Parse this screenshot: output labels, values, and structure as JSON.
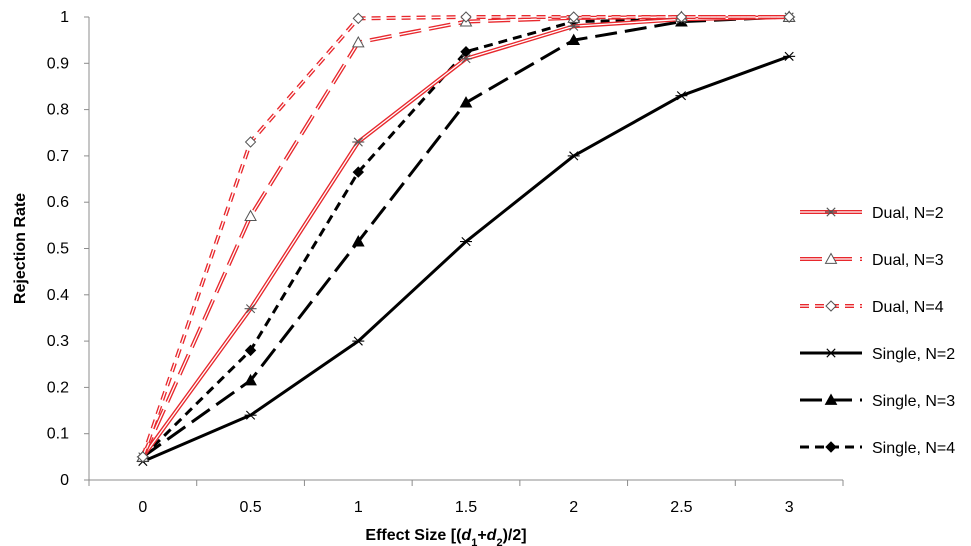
{
  "chart_data": {
    "type": "line",
    "title": "",
    "xlabel": "Effect Size [(d1+d2)/2]",
    "xlabel_parts": [
      {
        "text": "Effect Size [(",
        "style": "normal"
      },
      {
        "text": "d",
        "style": "italic"
      },
      {
        "text": "1",
        "style": "sub"
      },
      {
        "text": "+",
        "style": "normal"
      },
      {
        "text": "d",
        "style": "italic"
      },
      {
        "text": "2",
        "style": "sub"
      },
      {
        "text": ")/2]",
        "style": "normal"
      }
    ],
    "ylabel": "Rejection Rate",
    "xlim": [
      -0.25,
      3.25
    ],
    "ylim": [
      0,
      1
    ],
    "x_ticks": [
      "0",
      "0.5",
      "1",
      "1.5",
      "2",
      "2.5",
      "3"
    ],
    "y_ticks": [
      "0",
      "0.1",
      "0.2",
      "0.3",
      "0.4",
      "0.5",
      "0.6",
      "0.7",
      "0.8",
      "0.9",
      "1"
    ],
    "x": [
      0,
      0.5,
      1,
      1.5,
      2,
      2.5,
      3
    ],
    "grid": false,
    "legend_position": "right",
    "series": [
      {
        "name": "Dual, N=2",
        "values": [
          0.05,
          0.37,
          0.73,
          0.91,
          0.98,
          0.995,
          1.0
        ],
        "color": "#e8282d",
        "style": "double-solid",
        "marker": "asterisk"
      },
      {
        "name": "Dual, N=3",
        "values": [
          0.05,
          0.57,
          0.945,
          0.99,
          0.998,
          1.0,
          1.0
        ],
        "color": "#e8282d",
        "style": "double-longdash",
        "marker": "triangle-open"
      },
      {
        "name": "Dual, N=4",
        "values": [
          0.05,
          0.73,
          0.997,
          1.0,
          1.0,
          1.0,
          1.0
        ],
        "color": "#e8282d",
        "style": "double-shortdash",
        "marker": "diamond-open"
      },
      {
        "name": "Single, N=2",
        "values": [
          0.04,
          0.14,
          0.3,
          0.515,
          0.7,
          0.83,
          0.915
        ],
        "color": "#000000",
        "style": "solid",
        "marker": "asterisk"
      },
      {
        "name": "Single, N=3",
        "values": [
          0.05,
          0.215,
          0.515,
          0.815,
          0.95,
          0.99,
          1.0
        ],
        "color": "#000000",
        "style": "longdash",
        "marker": "triangle-filled"
      },
      {
        "name": "Single, N=4",
        "values": [
          0.05,
          0.28,
          0.665,
          0.925,
          0.99,
          0.995,
          1.0
        ],
        "color": "#000000",
        "style": "shortdash",
        "marker": "diamond-filled"
      }
    ]
  }
}
